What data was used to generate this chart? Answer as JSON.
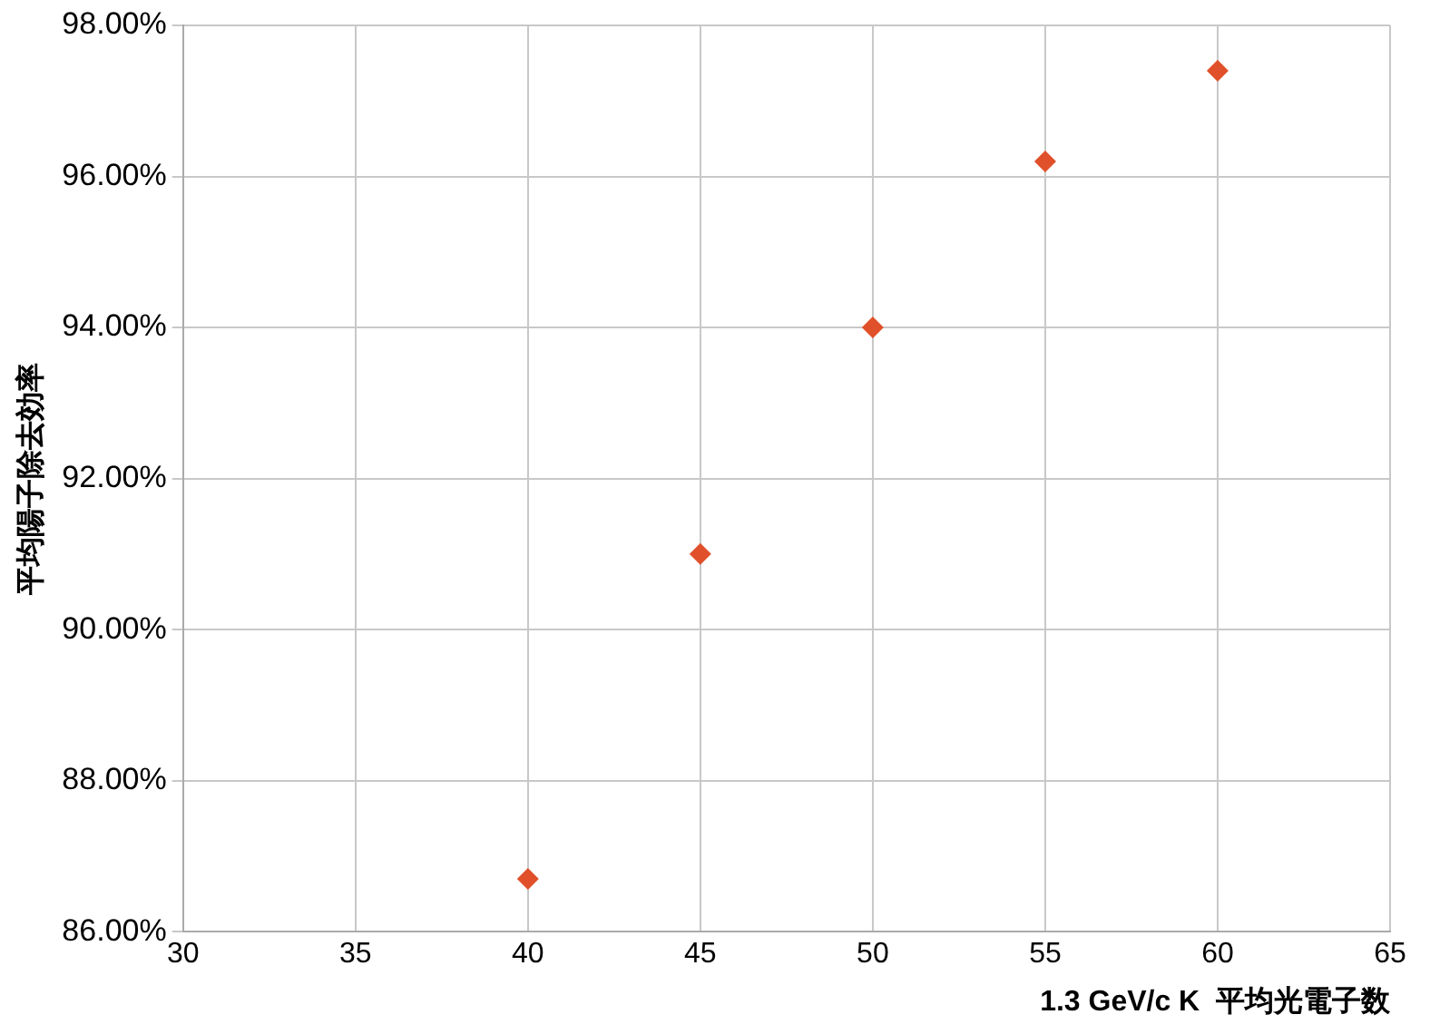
{
  "chart_data": {
    "type": "scatter",
    "xlabel": "1.3 GeV/c K  平均光電子数",
    "ylabel": "平均陽子除去効率",
    "x": [
      40,
      45,
      50,
      55,
      60
    ],
    "series": [
      {
        "color": "#e0502a",
        "values": [
          86.7,
          91.0,
          94.0,
          96.2,
          97.4
        ]
      }
    ],
    "xlim": [
      30,
      65
    ],
    "xticks": [
      30,
      35,
      40,
      45,
      50,
      55,
      60,
      65
    ],
    "ylim": [
      86,
      98
    ],
    "yticks": [
      {
        "value": 86,
        "label": "86.00%"
      },
      {
        "value": 88,
        "label": "88.00%"
      },
      {
        "value": 90,
        "label": "90.00%"
      },
      {
        "value": 92,
        "label": "92.00%"
      },
      {
        "value": 94,
        "label": "94.00%"
      },
      {
        "value": 96,
        "label": "96.00%"
      },
      {
        "value": 98,
        "label": "98.00%"
      }
    ],
    "grid": true,
    "marker": "diamond",
    "legend": false
  }
}
